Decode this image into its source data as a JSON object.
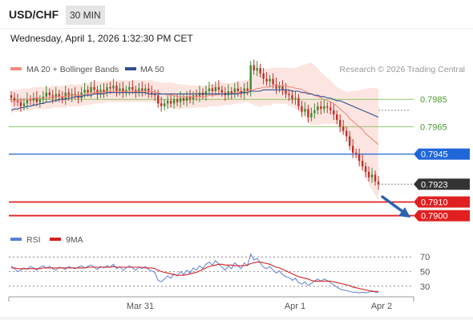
{
  "header": {
    "pair": "USD/CHF",
    "timeframe": "30 MIN",
    "datetime": "Wednesday, April 1, 2026 1:32:30 PM CET"
  },
  "legend": {
    "bollinger": "MA 20 + Bollinger Bands",
    "ma50": "MA 50",
    "rsi": "RSI",
    "rsi_ma": "9MA"
  },
  "source": "Research © 2026 Trading Central",
  "colors": {
    "up": "#3a8a2e",
    "down": "#c0302a",
    "bollinger": "#f08a80",
    "band_fill": "#fbe0dc",
    "ma50": "#2f4f8a",
    "pivot_blue": "#1f66d9",
    "support_red": "#e02020",
    "resistance_green": "#8cc46a",
    "rsi": "#5b7fd6",
    "rsi_ma": "#d42020",
    "arrow": "#2a63b0"
  },
  "chart_data": [
    {
      "type": "candlestick",
      "ylim": [
        0.7898,
        0.7998
      ],
      "levels": [
        {
          "value": 0.7985,
          "label": "0.7985",
          "kind": "resistance"
        },
        {
          "value": 0.7965,
          "label": "0.7965",
          "kind": "resistance"
        },
        {
          "value": 0.7945,
          "label": "0.7945",
          "kind": "pivot"
        },
        {
          "value": 0.7923,
          "label": "0.7923",
          "kind": "last"
        },
        {
          "value": 0.791,
          "label": "0.7910",
          "kind": "support"
        },
        {
          "value": 0.79,
          "label": "0.7900",
          "kind": "support"
        }
      ],
      "x_labels": [
        "Mar 31",
        "Apr 1",
        "Apr 2"
      ],
      "close": [
        0.7986,
        0.7984,
        0.7983,
        0.798,
        0.7982,
        0.7985,
        0.7984,
        0.7986,
        0.7983,
        0.7985,
        0.7987,
        0.799,
        0.7988,
        0.7986,
        0.7989,
        0.7987,
        0.7985,
        0.799,
        0.7987,
        0.7989,
        0.7988,
        0.7986,
        0.799,
        0.7992,
        0.799,
        0.7994,
        0.7992,
        0.7989,
        0.7992,
        0.799,
        0.7994,
        0.7993,
        0.7995,
        0.7991,
        0.7993,
        0.799,
        0.7992,
        0.7994,
        0.7992,
        0.799,
        0.7993,
        0.7991,
        0.7993,
        0.799,
        0.7989,
        0.7988,
        0.7982,
        0.798,
        0.7982,
        0.7984,
        0.7982,
        0.7985,
        0.7983,
        0.7986,
        0.7984,
        0.7987,
        0.7985,
        0.7988,
        0.7987,
        0.799,
        0.7988,
        0.7991,
        0.7993,
        0.7991,
        0.7994,
        0.7992,
        0.799,
        0.7988,
        0.7991,
        0.7989,
        0.7993,
        0.7991,
        0.7989,
        0.7993,
        0.7991,
        0.801,
        0.8006,
        0.8008,
        0.8004,
        0.8,
        0.7998,
        0.8,
        0.7996,
        0.7993,
        0.7995,
        0.7992,
        0.7989,
        0.7988,
        0.7985,
        0.7986,
        0.798,
        0.7976,
        0.7978,
        0.7972,
        0.7975,
        0.7977,
        0.798,
        0.7978,
        0.798,
        0.7979,
        0.7977,
        0.7974,
        0.797,
        0.7965,
        0.7962,
        0.7958,
        0.7951,
        0.7946,
        0.7945,
        0.794,
        0.7936,
        0.7932,
        0.7928,
        0.793,
        0.7925,
        0.7923
      ],
      "ma20": [
        0.7983,
        0.7984,
        0.7984,
        0.7984,
        0.7985,
        0.7985,
        0.7985,
        0.7986,
        0.7986,
        0.7986,
        0.7986,
        0.7986,
        0.7986,
        0.7987,
        0.7987,
        0.7987,
        0.7987,
        0.7987,
        0.7988,
        0.7988,
        0.7988,
        0.7988,
        0.7988,
        0.7989,
        0.7989,
        0.7989,
        0.799,
        0.799,
        0.799,
        0.799,
        0.7991,
        0.7991,
        0.7991,
        0.7991,
        0.7991,
        0.7991,
        0.7991,
        0.7991,
        0.7991,
        0.7991,
        0.7991,
        0.7991,
        0.7991,
        0.7991,
        0.7991,
        0.799,
        0.799,
        0.7989,
        0.7989,
        0.7988,
        0.7988,
        0.7988,
        0.7987,
        0.7987,
        0.7987,
        0.7987,
        0.7987,
        0.7987,
        0.7987,
        0.7987,
        0.7987,
        0.7987,
        0.7988,
        0.7988,
        0.7988,
        0.7989,
        0.7989,
        0.7989,
        0.7989,
        0.7989,
        0.799,
        0.799,
        0.799,
        0.7991,
        0.7991,
        0.7992,
        0.7992,
        0.7993,
        0.7993,
        0.7994,
        0.7994,
        0.7994,
        0.7995,
        0.7995,
        0.7995,
        0.7995,
        0.7995,
        0.7994,
        0.7994,
        0.7993,
        0.7993,
        0.7992,
        0.7991,
        0.799,
        0.7989,
        0.7988,
        0.7987,
        0.7986,
        0.7985,
        0.7984,
        0.7983,
        0.7982,
        0.798,
        0.7978,
        0.7976,
        0.7974,
        0.7971,
        0.7969,
        0.7967,
        0.7965,
        0.7963,
        0.796,
        0.7958,
        0.7956,
        0.7954,
        0.7952
      ],
      "ma50": [
        0.7977,
        0.7978,
        0.7978,
        0.7979,
        0.7979,
        0.798,
        0.798,
        0.7981,
        0.7981,
        0.7982,
        0.7982,
        0.7983,
        0.7983,
        0.7984,
        0.7984,
        0.7985,
        0.7985,
        0.7985,
        0.7986,
        0.7986,
        0.7987,
        0.7987,
        0.7987,
        0.7988,
        0.7988,
        0.7988,
        0.7989,
        0.7989,
        0.7989,
        0.7989,
        0.799,
        0.799,
        0.799,
        0.799,
        0.799,
        0.799,
        0.799,
        0.799,
        0.799,
        0.799,
        0.799,
        0.799,
        0.799,
        0.7989,
        0.7989,
        0.7989,
        0.7989,
        0.7989,
        0.7989,
        0.7989,
        0.7989,
        0.7989,
        0.7989,
        0.7989,
        0.7989,
        0.7989,
        0.7989,
        0.7989,
        0.7989,
        0.7989,
        0.7989,
        0.7989,
        0.7989,
        0.7989,
        0.7989,
        0.7989,
        0.7989,
        0.7989,
        0.7989,
        0.7989,
        0.7989,
        0.7989,
        0.799,
        0.799,
        0.799,
        0.7991,
        0.7991,
        0.7991,
        0.7991,
        0.7992,
        0.7992,
        0.7992,
        0.7992,
        0.7992,
        0.7992,
        0.7992,
        0.7992,
        0.7992,
        0.7991,
        0.7991,
        0.7991,
        0.799,
        0.799,
        0.7989,
        0.7989,
        0.7988,
        0.7988,
        0.7987,
        0.7987,
        0.7986,
        0.7986,
        0.7985,
        0.7984,
        0.7984,
        0.7983,
        0.7982,
        0.7981,
        0.798,
        0.7979,
        0.7978,
        0.7977,
        0.7976,
        0.7975,
        0.7974,
        0.7973,
        0.7972
      ]
    },
    {
      "type": "line",
      "title": "RSI",
      "ylim": [
        20,
        80
      ],
      "y_ticks": [
        70,
        50,
        30
      ],
      "rsi": [
        58,
        54,
        50,
        52,
        55,
        53,
        57,
        55,
        52,
        56,
        58,
        55,
        57,
        54,
        52,
        56,
        55,
        53,
        57,
        55,
        54,
        56,
        58,
        55,
        57,
        59,
        56,
        53,
        57,
        55,
        58,
        56,
        60,
        54,
        57,
        52,
        55,
        58,
        55,
        52,
        56,
        54,
        57,
        53,
        51,
        49,
        38,
        36,
        40,
        44,
        41,
        47,
        44,
        50,
        46,
        52,
        48,
        55,
        52,
        58,
        54,
        60,
        63,
        59,
        65,
        60,
        56,
        52,
        58,
        54,
        62,
        58,
        54,
        62,
        58,
        74,
        66,
        68,
        62,
        56,
        54,
        57,
        52,
        48,
        51,
        46,
        43,
        42,
        38,
        41,
        35,
        33,
        36,
        31,
        34,
        37,
        40,
        37,
        40,
        38,
        35,
        32,
        29,
        26,
        25,
        24,
        23,
        22,
        22,
        21,
        22,
        21,
        22,
        24,
        22,
        22
      ],
      "rsi_ma": [
        55,
        55,
        54,
        54,
        54,
        54,
        54,
        54,
        54,
        54,
        55,
        55,
        55,
        55,
        55,
        55,
        55,
        55,
        55,
        55,
        55,
        55,
        55,
        55,
        56,
        56,
        56,
        56,
        56,
        56,
        56,
        56,
        57,
        56,
        56,
        56,
        56,
        56,
        56,
        56,
        56,
        56,
        55,
        55,
        55,
        54,
        52,
        50,
        49,
        48,
        47,
        46,
        45,
        45,
        45,
        46,
        47,
        48,
        49,
        51,
        53,
        55,
        57,
        58,
        59,
        60,
        60,
        59,
        59,
        59,
        58,
        58,
        58,
        58,
        59,
        61,
        62,
        63,
        63,
        62,
        61,
        60,
        58,
        56,
        55,
        53,
        51,
        49,
        47,
        45,
        43,
        42,
        41,
        40,
        38,
        37,
        37,
        37,
        37,
        37,
        37,
        36,
        35,
        34,
        33,
        32,
        31,
        29,
        28,
        27,
        26,
        25,
        24,
        23,
        23,
        23
      ]
    }
  ]
}
